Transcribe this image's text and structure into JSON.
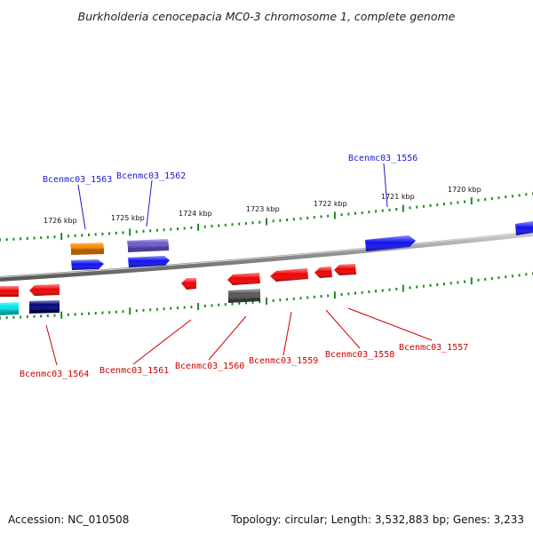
{
  "title": "Burkholderia cenocepacia MC0-3 chromosome 1, complete genome",
  "colors": {
    "backbone": "#7a7a7a",
    "tick": "#1f8a1f",
    "top_label": "#1a1acc",
    "bottom_label": "#cc0000"
  },
  "kbp_labels": [
    "1726 kbp",
    "1725 kbp",
    "1724 kbp",
    "1723 kbp",
    "1722 kbp",
    "1721 kbp",
    "1720 kbp"
  ],
  "top_labels": [
    {
      "name": "Bcenmc03_1563"
    },
    {
      "name": "Bcenmc03_1562"
    },
    {
      "name": "Bcenmc03_1556"
    }
  ],
  "bottom_labels": [
    {
      "name": "Bcenmc03_1564"
    },
    {
      "name": "Bcenmc03_1561"
    },
    {
      "name": "Bcenmc03_1560"
    },
    {
      "name": "Bcenmc03_1559"
    },
    {
      "name": "Bcenmc03_1558"
    },
    {
      "name": "Bcenmc03_1557"
    }
  ],
  "genes": [
    {
      "color": "#ff8c00"
    },
    {
      "color": "#1010ee"
    },
    {
      "color": "#6a5acd"
    },
    {
      "color": "#1010ee"
    },
    {
      "color": "#1010ee"
    },
    {
      "color": "#1010ee"
    },
    {
      "color": "#ee0000"
    },
    {
      "color": "#ee0000"
    },
    {
      "color": "#ee0000"
    },
    {
      "color": "#ee0000"
    },
    {
      "color": "#ee0000"
    },
    {
      "color": "#ee0000"
    },
    {
      "color": "#ee0000"
    },
    {
      "color": "#00e5ee"
    },
    {
      "color": "#000080"
    },
    {
      "color": "#555555"
    }
  ],
  "footer": {
    "accession": "Accession: NC_010508",
    "topology": "Topology: circular; Length: 3,532,883 bp; Genes: 3,233"
  }
}
